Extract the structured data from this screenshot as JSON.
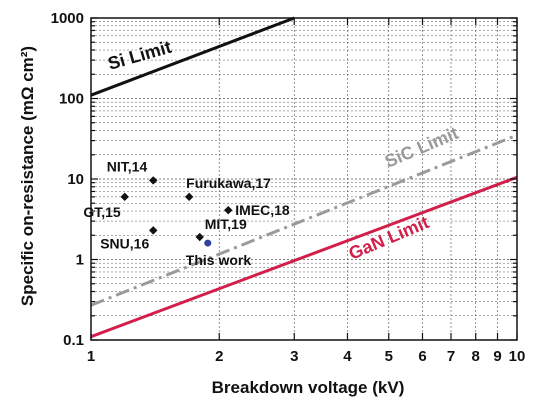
{
  "chart_data": {
    "type": "scatter",
    "xlabel": "Breakdown voltage (kV)",
    "ylabel": "Specific on-resistance (mΩ cm²)",
    "x_scale": "log",
    "y_scale": "log",
    "xlim": [
      1,
      10
    ],
    "ylim": [
      0.1,
      1000
    ],
    "x_ticks": [
      1,
      2,
      3,
      4,
      5,
      6,
      7,
      8,
      9,
      10
    ],
    "x_tick_labels": [
      "1",
      "2",
      "3",
      "4",
      "5",
      "6",
      "7",
      "8",
      "9",
      "10"
    ],
    "y_ticks": [
      0.1,
      1,
      10,
      100,
      1000
    ],
    "y_tick_labels": [
      "0.1",
      "1",
      "10",
      "100",
      "1000"
    ],
    "grid": true,
    "limits": [
      {
        "name": "Si Limit",
        "color": "#111111",
        "style": "solid",
        "x": [
          1,
          3
        ],
        "y": [
          110,
          1000
        ]
      },
      {
        "name": "SiC Limit",
        "color": "#9a9a9a",
        "style": "dash-dot",
        "x": [
          1,
          10
        ],
        "y": [
          0.27,
          35
        ]
      },
      {
        "name": "GaN Limit",
        "color": "#d21f4a",
        "style": "solid",
        "x": [
          1,
          10
        ],
        "y": [
          0.11,
          10.5
        ]
      }
    ],
    "points": [
      {
        "label": "NIT,14",
        "x": 1.4,
        "y": 9.6,
        "color": "#111111"
      },
      {
        "label": "GT,15",
        "x": 1.2,
        "y": 6.0,
        "color": "#111111"
      },
      {
        "label": "SNU,16",
        "x": 1.4,
        "y": 2.3,
        "color": "#111111"
      },
      {
        "label": "Furukawa,17",
        "x": 1.7,
        "y": 6.0,
        "color": "#111111"
      },
      {
        "label": "IMEC,18",
        "x": 2.1,
        "y": 4.1,
        "color": "#111111"
      },
      {
        "label": "MIT,19",
        "x": 1.8,
        "y": 1.9,
        "color": "#111111"
      },
      {
        "label": "This work",
        "x": 1.88,
        "y": 1.6,
        "color": "#2e3f9e"
      }
    ]
  }
}
